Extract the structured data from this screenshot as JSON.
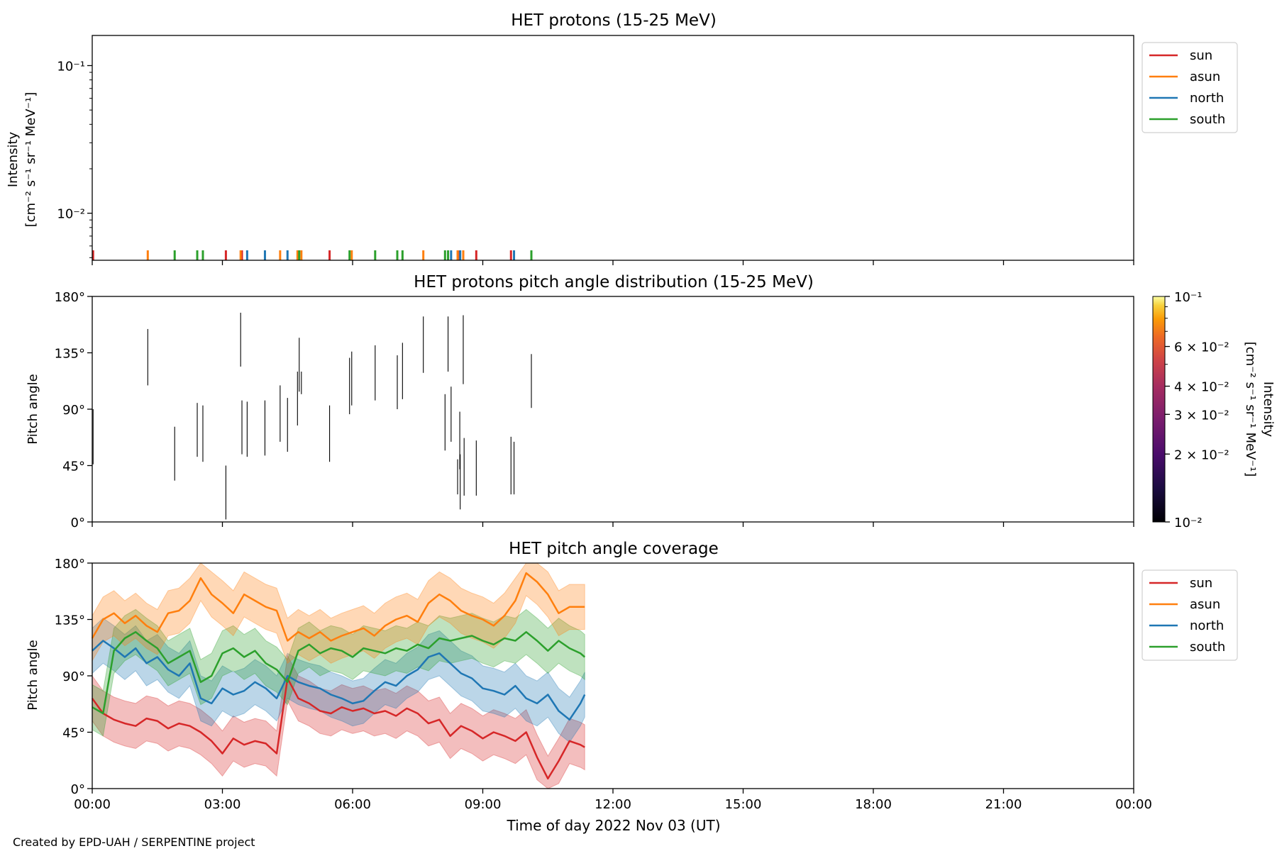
{
  "footer": {
    "credit": "Created by EPD-UAH / SERPENTINE project"
  },
  "colors": {
    "sun": "#d62728",
    "asun": "#ff7f0e",
    "north": "#1f77b4",
    "south": "#2ca02c",
    "pad_line": "#000000"
  },
  "chart_data": [
    {
      "type": "bar",
      "title": "HET protons (15-25 MeV)",
      "ylabel": "Intensity",
      "ylabel_units": "[cm⁻² s⁻¹ sr⁻¹ MeV⁻¹]",
      "y_scale": "log",
      "ylim": [
        0.0048,
        0.16
      ],
      "y_ticks": [
        {
          "value": 0.1,
          "label": "10⁻¹"
        },
        {
          "value": 0.01,
          "label": "10⁻²"
        }
      ],
      "legend": {
        "placement": "outside-right-top",
        "entries": [
          "sun",
          "asun",
          "north",
          "south"
        ]
      },
      "series": [
        {
          "name": "sun",
          "x_hours": [
            0.02,
            3.08,
            3.45,
            5.47,
            8.47,
            8.55,
            8.85,
            9.65
          ]
        },
        {
          "name": "asun",
          "x_hours": [
            1.28,
            3.42,
            4.33,
            4.73,
            4.82,
            5.98,
            7.63,
            8.42,
            8.55
          ]
        },
        {
          "name": "north",
          "x_hours": [
            3.57,
            3.98,
            4.5,
            8.27,
            8.48,
            9.72
          ]
        },
        {
          "name": "south",
          "x_hours": [
            1.9,
            2.42,
            2.55,
            4.77,
            5.93,
            6.52,
            7.03,
            7.15,
            8.13,
            8.2,
            10.12
          ]
        }
      ]
    },
    {
      "type": "heatmap",
      "title": "HET protons pitch angle distribution (15-25 MeV)",
      "ylabel": "Pitch angle",
      "ylim": [
        0,
        180
      ],
      "y_ticks": [
        "0°",
        "45°",
        "90°",
        "135°",
        "180°"
      ],
      "colorbar": {
        "label": "Intensity",
        "units": "[cm⁻² s⁻¹ sr⁻¹ MeV⁻¹]",
        "scale": "log",
        "colormap": "inferno",
        "range": [
          0.01,
          0.1
        ],
        "ticks": [
          {
            "value": 0.1,
            "label": "10⁻¹"
          },
          {
            "value": 0.06,
            "label": "6 × 10⁻²"
          },
          {
            "value": 0.04,
            "label": "4 × 10⁻²"
          },
          {
            "value": 0.03,
            "label": "3 × 10⁻²"
          },
          {
            "value": 0.02,
            "label": "2 × 10⁻²"
          },
          {
            "value": 0.01,
            "label": "10⁻²"
          }
        ]
      },
      "segments": [
        {
          "x": 0.02,
          "y": [
            46,
            90
          ]
        },
        {
          "x": 1.28,
          "y": [
            109,
            154
          ]
        },
        {
          "x": 1.9,
          "y": [
            33,
            76
          ]
        },
        {
          "x": 2.42,
          "y": [
            52,
            95
          ]
        },
        {
          "x": 2.55,
          "y": [
            48,
            93
          ]
        },
        {
          "x": 3.08,
          "y": [
            2,
            45
          ]
        },
        {
          "x": 3.42,
          "y": [
            124,
            167
          ]
        },
        {
          "x": 3.45,
          "y": [
            54,
            97
          ]
        },
        {
          "x": 3.57,
          "y": [
            52,
            96
          ]
        },
        {
          "x": 3.98,
          "y": [
            53,
            97
          ]
        },
        {
          "x": 4.33,
          "y": [
            64,
            109
          ]
        },
        {
          "x": 4.5,
          "y": [
            56,
            99
          ]
        },
        {
          "x": 4.73,
          "y": [
            77,
            120
          ]
        },
        {
          "x": 4.77,
          "y": [
            104,
            147
          ]
        },
        {
          "x": 4.82,
          "y": [
            102,
            120
          ]
        },
        {
          "x": 5.47,
          "y": [
            48,
            93
          ]
        },
        {
          "x": 5.93,
          "y": [
            86,
            131
          ]
        },
        {
          "x": 5.98,
          "y": [
            93,
            136
          ]
        },
        {
          "x": 6.52,
          "y": [
            97,
            141
          ]
        },
        {
          "x": 7.03,
          "y": [
            90,
            133
          ]
        },
        {
          "x": 7.15,
          "y": [
            98,
            143
          ]
        },
        {
          "x": 7.63,
          "y": [
            119,
            164
          ]
        },
        {
          "x": 8.13,
          "y": [
            57,
            102
          ]
        },
        {
          "x": 8.2,
          "y": [
            120,
            164
          ]
        },
        {
          "x": 8.27,
          "y": [
            64,
            108
          ]
        },
        {
          "x": 8.42,
          "y": [
            22,
            50
          ]
        },
        {
          "x": 8.47,
          "y": [
            42,
            88
          ]
        },
        {
          "x": 8.48,
          "y": [
            10,
            54
          ]
        },
        {
          "x": 8.55,
          "y": [
            110,
            165
          ]
        },
        {
          "x": 8.57,
          "y": [
            21,
            67
          ]
        },
        {
          "x": 8.85,
          "y": [
            21,
            65
          ]
        },
        {
          "x": 9.65,
          "y": [
            22,
            68
          ]
        },
        {
          "x": 9.72,
          "y": [
            22,
            64
          ]
        },
        {
          "x": 10.12,
          "y": [
            91,
            134
          ]
        }
      ]
    },
    {
      "type": "line",
      "title": "HET pitch angle coverage",
      "ylabel": "Pitch angle",
      "xlabel": "Time of day 2022 Nov 03 (UT)",
      "ylim": [
        0,
        180
      ],
      "xlim_hours": [
        0,
        24
      ],
      "y_ticks": [
        "0°",
        "45°",
        "90°",
        "135°",
        "180°"
      ],
      "x_ticks": [
        "00:00",
        "03:00",
        "06:00",
        "09:00",
        "12:00",
        "15:00",
        "18:00",
        "21:00",
        "00:00"
      ],
      "legend": {
        "placement": "outside-right-top",
        "entries": [
          "sun",
          "asun",
          "north",
          "south"
        ]
      },
      "series": [
        {
          "name": "sun",
          "band_halfwidth": 18,
          "x_hours": [
            0,
            0.25,
            0.5,
            0.75,
            1,
            1.25,
            1.5,
            1.75,
            2,
            2.25,
            2.5,
            2.75,
            3,
            3.25,
            3.5,
            3.75,
            4,
            4.25,
            4.5,
            4.75,
            5,
            5.25,
            5.5,
            5.75,
            6,
            6.25,
            6.5,
            6.75,
            7,
            7.25,
            7.5,
            7.75,
            8,
            8.25,
            8.5,
            8.75,
            9,
            9.25,
            9.5,
            9.75,
            10,
            10.25,
            10.5,
            10.75,
            11,
            11.25,
            11.35
          ],
          "y": [
            72,
            60,
            55,
            52,
            50,
            56,
            54,
            48,
            52,
            50,
            45,
            38,
            28,
            40,
            35,
            38,
            36,
            28,
            88,
            72,
            68,
            62,
            60,
            65,
            62,
            64,
            60,
            62,
            58,
            64,
            60,
            52,
            55,
            42,
            50,
            46,
            40,
            45,
            42,
            38,
            45,
            25,
            8,
            22,
            38,
            35,
            33
          ]
        },
        {
          "name": "asun",
          "band_halfwidth": 18,
          "x_hours": [
            0,
            0.25,
            0.5,
            0.75,
            1,
            1.25,
            1.5,
            1.75,
            2,
            2.25,
            2.5,
            2.75,
            3,
            3.25,
            3.5,
            3.75,
            4,
            4.25,
            4.5,
            4.75,
            5,
            5.25,
            5.5,
            5.75,
            6,
            6.25,
            6.5,
            6.75,
            7,
            7.25,
            7.5,
            7.75,
            8,
            8.25,
            8.5,
            8.75,
            9,
            9.25,
            9.5,
            9.75,
            10,
            10.25,
            10.5,
            10.75,
            11,
            11.25,
            11.35
          ],
          "y": [
            120,
            135,
            140,
            132,
            138,
            130,
            125,
            140,
            142,
            150,
            168,
            155,
            148,
            140,
            155,
            150,
            145,
            142,
            118,
            125,
            120,
            125,
            118,
            122,
            125,
            128,
            122,
            130,
            135,
            138,
            133,
            148,
            155,
            150,
            142,
            138,
            135,
            130,
            138,
            150,
            172,
            165,
            155,
            140,
            145,
            145,
            145
          ]
        },
        {
          "name": "north",
          "band_halfwidth": 18,
          "x_hours": [
            0,
            0.25,
            0.5,
            0.75,
            1,
            1.25,
            1.5,
            1.75,
            2,
            2.25,
            2.5,
            2.75,
            3,
            3.25,
            3.5,
            3.75,
            4,
            4.25,
            4.5,
            4.75,
            5,
            5.25,
            5.5,
            5.75,
            6,
            6.25,
            6.5,
            6.75,
            7,
            7.25,
            7.5,
            7.75,
            8,
            8.25,
            8.5,
            8.75,
            9,
            9.25,
            9.5,
            9.75,
            10,
            10.25,
            10.5,
            10.75,
            11,
            11.25,
            11.35
          ],
          "y": [
            110,
            118,
            112,
            105,
            112,
            100,
            105,
            95,
            90,
            100,
            72,
            68,
            80,
            75,
            78,
            85,
            80,
            72,
            90,
            85,
            82,
            80,
            75,
            72,
            68,
            70,
            78,
            85,
            82,
            90,
            95,
            105,
            108,
            100,
            92,
            88,
            80,
            78,
            75,
            82,
            72,
            68,
            75,
            62,
            55,
            68,
            75
          ]
        },
        {
          "name": "south",
          "band_halfwidth": 18,
          "x_hours": [
            0,
            0.25,
            0.5,
            0.75,
            1,
            1.25,
            1.5,
            1.75,
            2,
            2.25,
            2.5,
            2.75,
            3,
            3.25,
            3.5,
            3.75,
            4,
            4.25,
            4.5,
            4.75,
            5,
            5.25,
            5.5,
            5.75,
            6,
            6.25,
            6.5,
            6.75,
            7,
            7.25,
            7.5,
            7.75,
            8,
            8.25,
            8.5,
            8.75,
            9,
            9.25,
            9.5,
            9.75,
            10,
            10.25,
            10.5,
            10.75,
            11,
            11.25,
            11.35
          ],
          "y": [
            65,
            60,
            110,
            120,
            125,
            118,
            112,
            100,
            105,
            110,
            85,
            90,
            108,
            112,
            105,
            110,
            100,
            95,
            85,
            110,
            115,
            108,
            112,
            110,
            105,
            112,
            110,
            108,
            112,
            110,
            115,
            112,
            120,
            118,
            120,
            122,
            118,
            115,
            120,
            118,
            125,
            118,
            110,
            118,
            112,
            108,
            105
          ]
        }
      ]
    }
  ]
}
